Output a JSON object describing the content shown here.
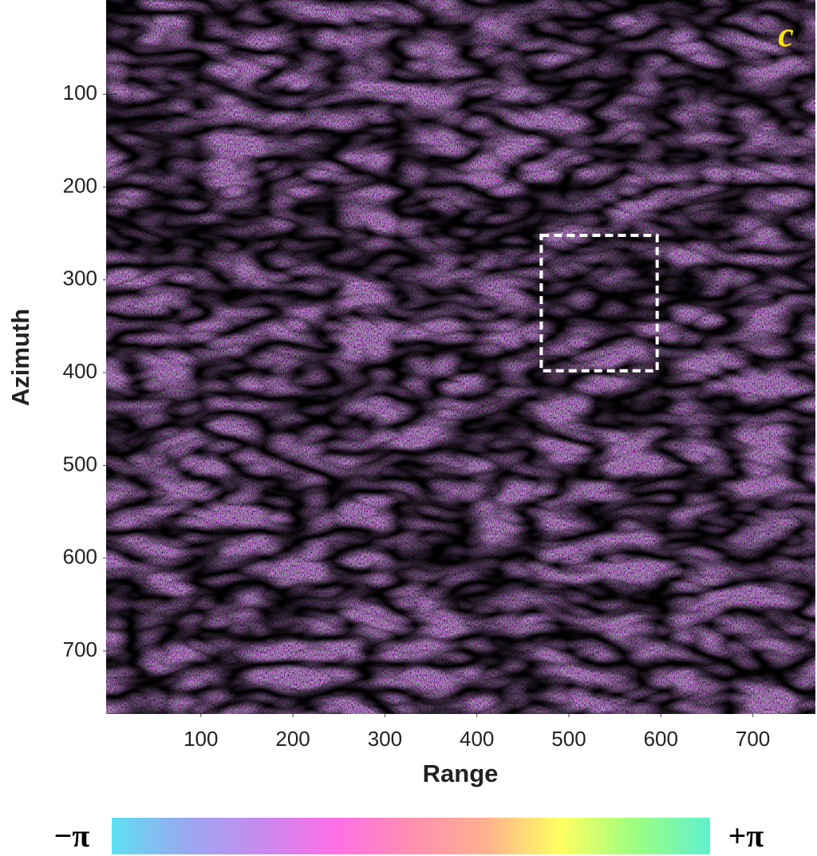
{
  "chart_data": {
    "type": "image",
    "panel_label": "c",
    "xlabel": "Range",
    "ylabel": "Azimuth",
    "xlim": [
      0,
      768
    ],
    "ylim": [
      0,
      768
    ],
    "y_inverted": true,
    "xticks": [
      100,
      200,
      300,
      400,
      500,
      600,
      700
    ],
    "yticks": [
      100,
      200,
      300,
      400,
      500,
      600,
      700
    ],
    "box": {
      "x": [
        470,
        596
      ],
      "y": [
        252,
        398
      ],
      "color": "#ffffff"
    },
    "colorbar": {
      "min_label": "−π",
      "max_label": "+π",
      "colors": [
        "#5ee0f2",
        "#9aa8f0",
        "#c88af0",
        "#ff6fe6",
        "#ff8fb0",
        "#ffb090",
        "#ffff60",
        "#9cff80",
        "#60f0d0"
      ]
    }
  }
}
